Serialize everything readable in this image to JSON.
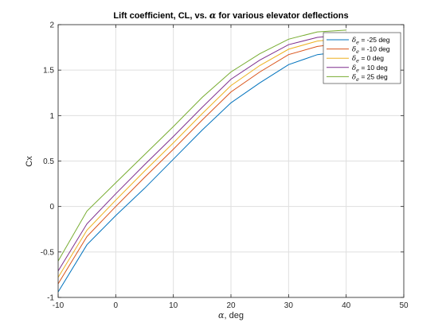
{
  "chart_data": {
    "type": "line",
    "title": {
      "prefix": "Lift coefficient, CL, vs. ",
      "symbol": "α",
      "suffix": " for various elevator deflections"
    },
    "xlabel": {
      "symbol": "α",
      "text": ", deg"
    },
    "ylabel": "Cx",
    "xlim": [
      -10,
      50
    ],
    "ylim": [
      -1,
      2
    ],
    "xticks": [
      -10,
      0,
      10,
      20,
      30,
      40,
      50
    ],
    "yticks": [
      -1,
      -0.5,
      0,
      0.5,
      1,
      1.5,
      2
    ],
    "grid": true,
    "legend_position": "top-right",
    "x": [
      -10,
      -5,
      0,
      5,
      10,
      15,
      20,
      25,
      30,
      35,
      40
    ],
    "series": [
      {
        "name": "= -25 deg",
        "color": "#0072BD",
        "values": [
          -0.94,
          -0.42,
          -0.1,
          0.2,
          0.52,
          0.84,
          1.14,
          1.36,
          1.56,
          1.67,
          1.71
        ]
      },
      {
        "name": "= -10 deg",
        "color": "#D95319",
        "values": [
          -0.85,
          -0.33,
          0.0,
          0.32,
          0.63,
          0.95,
          1.26,
          1.48,
          1.67,
          1.76,
          1.8
        ]
      },
      {
        "name": "= 0 deg",
        "color": "#EDB120",
        "values": [
          -0.78,
          -0.26,
          0.07,
          0.39,
          0.7,
          1.02,
          1.33,
          1.55,
          1.73,
          1.82,
          1.85
        ]
      },
      {
        "name": "= 10 deg",
        "color": "#7E2F8E",
        "values": [
          -0.71,
          -0.19,
          0.14,
          0.46,
          0.77,
          1.09,
          1.4,
          1.61,
          1.78,
          1.86,
          1.89
        ]
      },
      {
        "name": "= 25 deg",
        "color": "#77AC30",
        "values": [
          -0.6,
          -0.05,
          0.26,
          0.57,
          0.88,
          1.2,
          1.48,
          1.68,
          1.84,
          1.92,
          1.94
        ]
      }
    ],
    "legend_symbol": {
      "base": "δ",
      "sub": "e"
    }
  }
}
